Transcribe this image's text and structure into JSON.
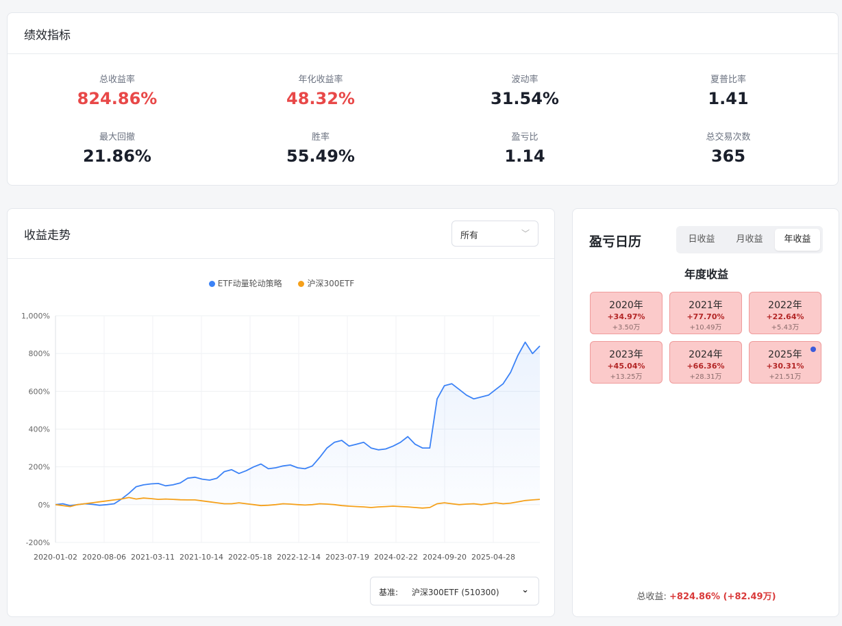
{
  "metrics": {
    "title": "绩效指标",
    "items": [
      {
        "label": "总收益率",
        "value": "824.86%",
        "highlight": true
      },
      {
        "label": "年化收益率",
        "value": "48.32%",
        "highlight": true
      },
      {
        "label": "波动率",
        "value": "31.54%",
        "highlight": false
      },
      {
        "label": "夏普比率",
        "value": "1.41",
        "highlight": false
      },
      {
        "label": "最大回撤",
        "value": "21.86%",
        "highlight": false
      },
      {
        "label": "胜率",
        "value": "55.49%",
        "highlight": false
      },
      {
        "label": "盈亏比",
        "value": "1.14",
        "highlight": false
      },
      {
        "label": "总交易次数",
        "value": "365",
        "highlight": false
      }
    ]
  },
  "trend": {
    "title": "收益走势",
    "range_select": "所有",
    "benchmark_prefix": "基准:",
    "benchmark_value": "沪深300ETF (510300)"
  },
  "chart_data": {
    "type": "line",
    "x_ticks": [
      "2020-01-02",
      "2020-08-06",
      "2021-03-11",
      "2021-10-14",
      "2022-05-18",
      "2022-12-14",
      "2023-07-19",
      "2024-02-22",
      "2024-09-20",
      "2025-04-28"
    ],
    "y_ticks": [
      "1,000%",
      "800%",
      "600%",
      "400%",
      "200%",
      "0%",
      "-200%"
    ],
    "ylim": [
      -200,
      1000
    ],
    "legend_position": "top-center",
    "series": [
      {
        "name": "ETF动量轮动策略",
        "color": "#3b82f6",
        "area": true,
        "values": [
          0,
          5,
          -5,
          0,
          5,
          2,
          -3,
          0,
          5,
          30,
          60,
          95,
          105,
          110,
          112,
          100,
          105,
          115,
          140,
          145,
          135,
          130,
          140,
          175,
          185,
          165,
          180,
          200,
          215,
          190,
          195,
          205,
          210,
          195,
          190,
          205,
          250,
          300,
          330,
          340,
          310,
          320,
          330,
          300,
          290,
          295,
          310,
          330,
          360,
          320,
          300,
          300,
          560,
          630,
          640,
          610,
          580,
          560,
          570,
          580,
          610,
          640,
          700,
          790,
          860,
          800,
          840
        ]
      },
      {
        "name": "沪深300ETF",
        "color": "#f5a01a",
        "area": false,
        "values": [
          0,
          -5,
          -10,
          0,
          5,
          10,
          15,
          20,
          25,
          30,
          38,
          30,
          35,
          32,
          28,
          30,
          28,
          26,
          25,
          25,
          20,
          15,
          10,
          5,
          5,
          10,
          5,
          0,
          -5,
          -3,
          0,
          5,
          3,
          0,
          -2,
          0,
          5,
          3,
          0,
          -5,
          -8,
          -10,
          -12,
          -15,
          -12,
          -10,
          -8,
          -10,
          -12,
          -15,
          -18,
          -15,
          5,
          10,
          5,
          0,
          3,
          5,
          0,
          5,
          10,
          5,
          8,
          15,
          22,
          25,
          28
        ]
      }
    ]
  },
  "calendar": {
    "title": "盈亏日历",
    "tabs": [
      "日收益",
      "月收益",
      "年收益"
    ],
    "active_tab": "年收益",
    "subtitle": "年度收益",
    "years": [
      {
        "year": "2020年",
        "pct": "+34.97%",
        "amount": "+3.50万"
      },
      {
        "year": "2021年",
        "pct": "+77.70%",
        "amount": "+10.49万"
      },
      {
        "year": "2022年",
        "pct": "+22.64%",
        "amount": "+5.43万"
      },
      {
        "year": "2023年",
        "pct": "+45.04%",
        "amount": "+13.25万"
      },
      {
        "year": "2024年",
        "pct": "+66.36%",
        "amount": "+28.31万"
      },
      {
        "year": "2025年",
        "pct": "+30.31%",
        "amount": "+21.51万",
        "current": true
      }
    ],
    "total_label": "总收益:",
    "total_value": "+824.86% (+82.49万)"
  }
}
